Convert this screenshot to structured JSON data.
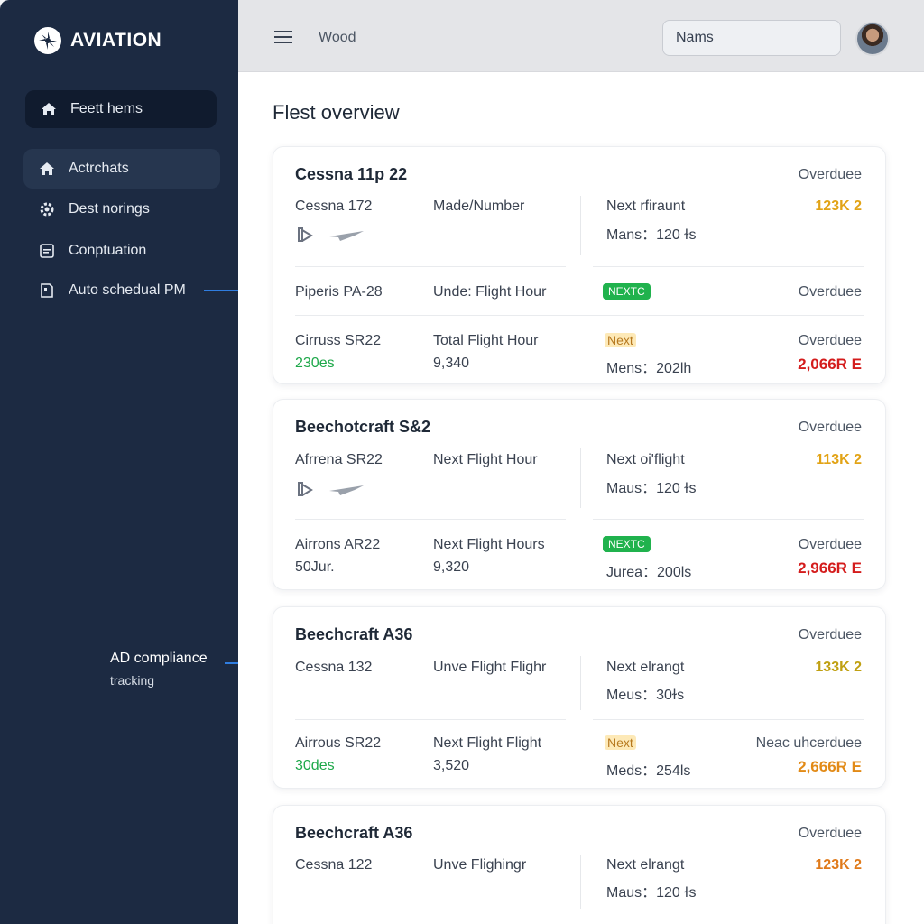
{
  "app": {
    "brand": "AVIATION"
  },
  "sidebar": {
    "items": [
      {
        "label": "Feett hems",
        "icon": "home-icon"
      },
      {
        "label": "Actrchats",
        "icon": "home-icon"
      },
      {
        "label": "Dest norings",
        "icon": "gear-icon"
      },
      {
        "label": "Conptuation",
        "icon": "list-icon"
      },
      {
        "label": "Auto schedual PM",
        "icon": "document-icon"
      }
    ],
    "note": {
      "line1": "AD compliance",
      "line2": "tracking"
    }
  },
  "topbar": {
    "title": "Wood",
    "search_placeholder": "Nams"
  },
  "main": {
    "title": "Flest overview",
    "cards": [
      {
        "title": "Cessna 11p 22",
        "status": "Overduee",
        "row1": {
          "model": "Cessna 172",
          "col2": "Made/Number",
          "col3a": "Next rfiraunt",
          "col3b": "Mans：120 ɫs",
          "value": "123K 2"
        },
        "row2": {
          "model": "Piperis PA-28",
          "col2": "Unde: Flight Hour",
          "badge": "NEXTC",
          "status": "Overduee"
        },
        "row3": {
          "model": "Cirruss SR22",
          "sub": "230es",
          "col2": "Total Flight Hour",
          "col2b": "9,340",
          "badge": "Next",
          "col3b": "Mens：202lh",
          "status": "Overduee",
          "value": "2,066R E"
        }
      },
      {
        "title": "Beechotcraft S&2",
        "status": "Overduee",
        "row1": {
          "model": "Afrrena SR22",
          "col2": "Next Flight Hour",
          "col3a": "Next oi'flight",
          "col3b": "Maus：120 ɫs",
          "value": "113K 2"
        },
        "row2": {
          "model": "Airrons AR22",
          "sub": "50Jur.",
          "col2": "Next Flight Hours",
          "col2b": "9,320",
          "badge": "NEXTC",
          "col3b": "Jurea：200ls",
          "status": "Overduee",
          "value": "2,966R E"
        }
      },
      {
        "title": "Beechcraft A36",
        "status": "Overduee",
        "row1": {
          "model": "Cessna 132",
          "col2": "Unve Flight Flighr",
          "col3a": "Next elrangt",
          "col3b": "Meus：30ɫs",
          "value": "133K 2"
        },
        "row2": {
          "model": "Airrous SR22",
          "sub": "30des",
          "col2": "Next Flight Flight",
          "col2b": "3,520",
          "badge": "Next",
          "col3b": "Meds：254ls",
          "status": "Neac uhcerduee",
          "value": "2,666R E"
        }
      },
      {
        "title": "Beechcraft A36",
        "status": "Overduee",
        "row1": {
          "model": "Cessna 122",
          "col2": "Unve Flighingr",
          "col3a": "Next elrangt",
          "col3b": "Maus：120 ɫs",
          "value": "123K 2"
        }
      }
    ]
  },
  "colors": {
    "sidebar": "#1c2a42",
    "green": "#20b24d",
    "red": "#d41c1c",
    "amber": "#e2a316",
    "accent": "#2f7de1"
  }
}
